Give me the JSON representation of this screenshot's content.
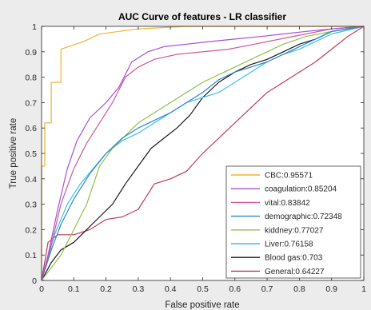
{
  "chart_data": {
    "type": "line",
    "title": "AUC Curve of features - LR classifier",
    "xlabel": "False positive rate",
    "ylabel": "True positive rate",
    "xlim": [
      0,
      1
    ],
    "ylim": [
      0,
      1
    ],
    "xticks": [
      "0",
      "0.1",
      "0.2",
      "0.3",
      "0.4",
      "0.5",
      "0.6",
      "0.7",
      "0.8",
      "0.9",
      "1"
    ],
    "yticks": [
      "0",
      "0.1",
      "0.2",
      "0.3",
      "0.4",
      "0.5",
      "0.6",
      "0.7",
      "0.8",
      "0.9",
      "1"
    ],
    "grid": false,
    "legend_position": "bottom-right",
    "series": [
      {
        "name": "CBC:0.95571",
        "color": "#f2b230",
        "x": [
          0,
          0,
          0.01,
          0.01,
          0.03,
          0.03,
          0.06,
          0.06,
          0.13,
          0.18,
          0.3,
          0.45,
          0.65,
          0.85,
          1
        ],
        "y": [
          0,
          0.45,
          0.45,
          0.62,
          0.62,
          0.78,
          0.78,
          0.91,
          0.94,
          0.97,
          0.99,
          1,
          1,
          1,
          1
        ]
      },
      {
        "name": "coagulation:0.85204",
        "color": "#a64fd6",
        "x": [
          0,
          0.02,
          0.05,
          0.08,
          0.11,
          0.15,
          0.2,
          0.24,
          0.28,
          0.33,
          0.38,
          0.45,
          0.52,
          0.6,
          0.68,
          0.75,
          0.82,
          0.9,
          0.95,
          1
        ],
        "y": [
          0,
          0.1,
          0.28,
          0.44,
          0.55,
          0.64,
          0.7,
          0.76,
          0.86,
          0.9,
          0.92,
          0.93,
          0.94,
          0.95,
          0.96,
          0.97,
          0.98,
          0.99,
          0.995,
          1
        ]
      },
      {
        "name": "vital:0.83842",
        "color": "#d1569c",
        "x": [
          0,
          0.03,
          0.06,
          0.1,
          0.14,
          0.18,
          0.22,
          0.26,
          0.3,
          0.35,
          0.42,
          0.5,
          0.58,
          0.66,
          0.74,
          0.82,
          0.9,
          1
        ],
        "y": [
          0,
          0.14,
          0.3,
          0.44,
          0.54,
          0.62,
          0.7,
          0.8,
          0.84,
          0.87,
          0.89,
          0.9,
          0.91,
          0.93,
          0.95,
          0.97,
          0.99,
          1
        ]
      },
      {
        "name": "demographic:0.72348",
        "color": "#2e86c8",
        "x": [
          0,
          0.03,
          0.06,
          0.1,
          0.15,
          0.2,
          0.25,
          0.3,
          0.35,
          0.4,
          0.45,
          0.5,
          0.55,
          0.6,
          0.65,
          0.7,
          0.75,
          0.8,
          0.85,
          0.9,
          1
        ],
        "y": [
          0,
          0.12,
          0.22,
          0.32,
          0.42,
          0.5,
          0.56,
          0.6,
          0.63,
          0.66,
          0.7,
          0.74,
          0.79,
          0.82,
          0.84,
          0.86,
          0.89,
          0.92,
          0.95,
          0.98,
          1
        ]
      },
      {
        "name": "kiddney:0.77027",
        "color": "#8cc24a",
        "x": [
          0,
          0.03,
          0.06,
          0.1,
          0.14,
          0.18,
          0.22,
          0.26,
          0.3,
          0.35,
          0.4,
          0.45,
          0.5,
          0.55,
          0.6,
          0.65,
          0.7,
          0.75,
          0.82,
          0.9,
          1
        ],
        "y": [
          0,
          0.05,
          0.1,
          0.2,
          0.3,
          0.45,
          0.52,
          0.57,
          0.62,
          0.66,
          0.7,
          0.74,
          0.78,
          0.81,
          0.84,
          0.87,
          0.9,
          0.93,
          0.96,
          0.98,
          1
        ]
      },
      {
        "name": "Liver:0.76158",
        "color": "#3cc0e8",
        "x": [
          0,
          0.04,
          0.08,
          0.12,
          0.16,
          0.2,
          0.25,
          0.3,
          0.35,
          0.4,
          0.45,
          0.5,
          0.55,
          0.6,
          0.65,
          0.7,
          0.75,
          0.8,
          0.85,
          0.9,
          1
        ],
        "y": [
          0,
          0.18,
          0.3,
          0.38,
          0.44,
          0.5,
          0.55,
          0.58,
          0.62,
          0.66,
          0.7,
          0.72,
          0.74,
          0.78,
          0.82,
          0.86,
          0.89,
          0.91,
          0.94,
          0.97,
          1
        ]
      },
      {
        "name": "Blood gas:0.703",
        "color": "#1a1a1a",
        "x": [
          0,
          0.03,
          0.06,
          0.1,
          0.14,
          0.18,
          0.22,
          0.26,
          0.3,
          0.34,
          0.38,
          0.42,
          0.46,
          0.5,
          0.55,
          0.6,
          0.65,
          0.7,
          0.75,
          0.8,
          0.85,
          0.9,
          1
        ],
        "y": [
          0,
          0.07,
          0.12,
          0.15,
          0.2,
          0.25,
          0.3,
          0.38,
          0.45,
          0.52,
          0.56,
          0.6,
          0.65,
          0.72,
          0.78,
          0.82,
          0.85,
          0.87,
          0.9,
          0.93,
          0.95,
          0.98,
          1
        ]
      },
      {
        "name": "General:0.64227",
        "color": "#c23a5a",
        "x": [
          0,
          0.02,
          0.05,
          0.1,
          0.15,
          0.2,
          0.25,
          0.3,
          0.35,
          0.4,
          0.45,
          0.5,
          0.55,
          0.6,
          0.65,
          0.7,
          0.75,
          0.8,
          0.85,
          0.9,
          0.95,
          1
        ],
        "y": [
          0,
          0.15,
          0.18,
          0.18,
          0.2,
          0.24,
          0.25,
          0.28,
          0.38,
          0.4,
          0.43,
          0.5,
          0.56,
          0.62,
          0.68,
          0.74,
          0.78,
          0.82,
          0.86,
          0.91,
          0.96,
          1
        ]
      }
    ]
  }
}
